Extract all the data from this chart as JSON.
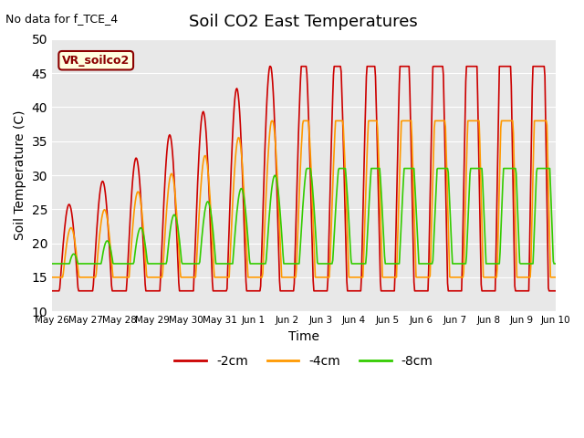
{
  "title": "Soil CO2 East Temperatures",
  "xlabel": "Time",
  "ylabel": "Soil Temperature (C)",
  "ylim": [
    10,
    50
  ],
  "annotation_text": "No data for f_TCE_4",
  "legend_label_text": "VR_soilco2",
  "bg_color": "#e8e8e8",
  "line_colors": {
    "-2cm": "#cc0000",
    "-4cm": "#ff9900",
    "-8cm": "#33cc00"
  },
  "x_tick_labels": [
    "May 26",
    "May 27",
    "May 28",
    "May 29",
    "May 30",
    "May 31",
    "Jun 1",
    "Jun 2",
    "Jun 3",
    "Jun 4",
    "Jun 5",
    "Jun 6",
    "Jun 7",
    "Jun 8",
    "Jun 9",
    "Jun 10"
  ],
  "num_days": 16
}
